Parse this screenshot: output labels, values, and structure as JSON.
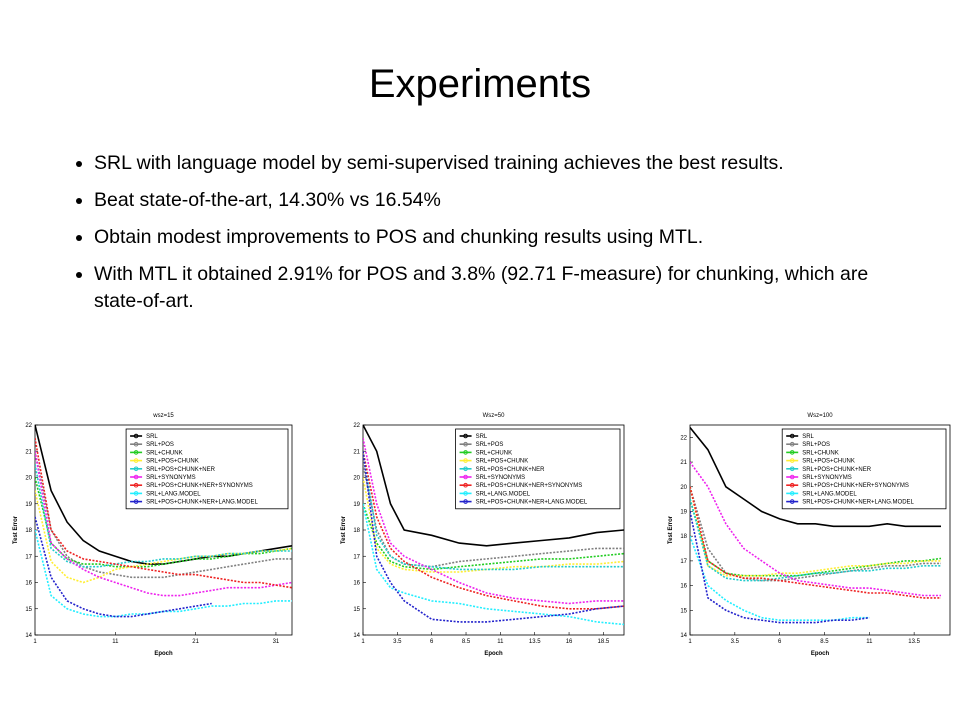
{
  "title": "Experiments",
  "bullets": [
    "SRL with language model by semi-supervised training achieves the best results.",
    "Beat state-of-the-art, 14.30% vs 16.54%",
    "Obtain modest improvements to POS and chunking results using MTL.",
    "With MTL it obtained 2.91% for POS and 3.8% (92.71 F-measure) for chunking, which are state-of-art."
  ],
  "chart_data": [
    {
      "type": "line",
      "title": "wsz=15",
      "xlabel": "Epoch",
      "ylabel": "Test Error",
      "legend": "upper right",
      "grid": false,
      "x": [
        1,
        3,
        5,
        7,
        9,
        11,
        13,
        15,
        17,
        19,
        21,
        23,
        25,
        27,
        29,
        31,
        33
      ],
      "xlim": [
        1,
        33
      ],
      "xticks": [
        1,
        11,
        21,
        31
      ],
      "ylim": [
        14,
        22
      ],
      "yticks": [
        14,
        15,
        16,
        17,
        18,
        19,
        20,
        21,
        22
      ],
      "series": [
        {
          "name": "SRL",
          "color": "#000000",
          "values": [
            22,
            19.5,
            18.3,
            17.6,
            17.2,
            17,
            16.8,
            16.7,
            16.7,
            16.8,
            16.9,
            17,
            17,
            17.1,
            17.2,
            17.3,
            17.4
          ]
        },
        {
          "name": "SRL+POS",
          "color": "#808080",
          "values": [
            21,
            18,
            17,
            16.6,
            16.4,
            16.3,
            16.2,
            16.2,
            16.2,
            16.3,
            16.4,
            16.5,
            16.6,
            16.7,
            16.8,
            16.9,
            16.9
          ]
        },
        {
          "name": "SRL+CHUNK",
          "color": "#22cc22",
          "values": [
            20,
            17.5,
            16.9,
            16.7,
            16.7,
            16.6,
            16.6,
            16.6,
            16.7,
            16.8,
            16.9,
            16.9,
            17,
            17.1,
            17.1,
            17.2,
            17.3
          ]
        },
        {
          "name": "SRL+POS+CHUNK",
          "color": "#ffee33",
          "values": [
            19.5,
            16.8,
            16.2,
            16,
            16.2,
            16.5,
            16.6,
            16.7,
            16.8,
            16.9,
            17,
            17,
            17.1,
            17.1,
            17.2,
            17.2,
            17.3
          ]
        },
        {
          "name": "SRL+POS+CHUNK+NER",
          "color": "#22cccc",
          "values": [
            20.5,
            17.3,
            16.8,
            16.6,
            16.6,
            16.7,
            16.8,
            16.8,
            16.9,
            16.9,
            17,
            17,
            17.1,
            17.1,
            17.2,
            17.2,
            17.2
          ]
        },
        {
          "name": "SRL+SYNONYMS",
          "color": "#ee22ee",
          "values": [
            21,
            17.5,
            16.9,
            16.5,
            16.2,
            16,
            15.8,
            15.6,
            15.5,
            15.5,
            15.6,
            15.7,
            15.8,
            15.8,
            15.8,
            15.9,
            16
          ]
        },
        {
          "name": "SRL+POS+CHUNK+NER+SYNONYMS",
          "color": "#ee2222",
          "values": [
            21.5,
            18,
            17.2,
            16.9,
            16.8,
            16.7,
            16.6,
            16.5,
            16.4,
            16.3,
            16.3,
            16.2,
            16.1,
            16,
            16,
            15.9,
            15.8
          ]
        },
        {
          "name": "SRL+LANG.MODEL",
          "color": "#22eeff",
          "values": [
            18,
            15.5,
            15,
            14.8,
            14.7,
            14.7,
            14.8,
            14.8,
            14.9,
            14.9,
            15,
            15.1,
            15.1,
            15.2,
            15.2,
            15.3,
            15.3
          ]
        },
        {
          "name": "SRL+POS+CHUNK+NER+LANG.MODEL",
          "color": "#2222cc",
          "values": [
            18.5,
            16.2,
            15.3,
            15,
            14.8,
            14.7,
            14.7,
            14.8,
            14.9,
            15,
            15.1,
            15.2,
            null,
            null,
            null,
            null,
            null
          ]
        }
      ]
    },
    {
      "type": "line",
      "title": "Wsz=50",
      "xlabel": "Epoch",
      "ylabel": "Test Error",
      "legend": "upper right",
      "grid": false,
      "x": [
        1,
        2,
        3,
        4,
        6,
        8,
        10,
        12,
        14,
        16,
        18,
        20
      ],
      "xlim": [
        1,
        20
      ],
      "xticks": [
        1,
        3.5,
        6,
        8.5,
        11,
        13.5,
        16,
        18.5
      ],
      "ylim": [
        14,
        22
      ],
      "yticks": [
        14,
        15,
        16,
        17,
        18,
        19,
        20,
        21,
        22
      ],
      "series": [
        {
          "name": "SRL",
          "color": "#000000",
          "values": [
            22,
            21,
            19,
            18,
            17.8,
            17.5,
            17.4,
            17.5,
            17.6,
            17.7,
            17.9,
            18
          ]
        },
        {
          "name": "SRL+POS",
          "color": "#808080",
          "values": [
            20.5,
            18,
            17,
            16.7,
            16.6,
            16.8,
            16.9,
            17,
            17.1,
            17.2,
            17.3,
            17.3
          ]
        },
        {
          "name": "SRL+CHUNK",
          "color": "#22cc22",
          "values": [
            19,
            17.5,
            16.8,
            16.6,
            16.5,
            16.6,
            16.7,
            16.8,
            16.9,
            16.9,
            17,
            17.1
          ]
        },
        {
          "name": "SRL+POS+CHUNK",
          "color": "#ffee33",
          "values": [
            20,
            17.3,
            16.7,
            16.5,
            16.4,
            16.4,
            16.5,
            16.6,
            16.6,
            16.7,
            16.7,
            16.8
          ]
        },
        {
          "name": "SRL+POS+CHUNK+NER",
          "color": "#22cccc",
          "values": [
            21,
            17.8,
            17,
            16.7,
            16.6,
            16.5,
            16.5,
            16.5,
            16.6,
            16.6,
            16.6,
            16.6
          ]
        },
        {
          "name": "SRL+SYNONYMS",
          "color": "#ee22ee",
          "values": [
            21.5,
            19,
            17.5,
            17,
            16.5,
            16,
            15.6,
            15.4,
            15.3,
            15.2,
            15.3,
            15.3
          ]
        },
        {
          "name": "SRL+POS+CHUNK+NER+SYNONYMS",
          "color": "#ee2222",
          "values": [
            21,
            18.5,
            17.3,
            16.8,
            16.2,
            15.8,
            15.5,
            15.3,
            15.1,
            15,
            15,
            15.1
          ]
        },
        {
          "name": "SRL+LANG.MODEL",
          "color": "#22eeff",
          "values": [
            19,
            16.5,
            15.8,
            15.6,
            15.3,
            15.2,
            15,
            14.9,
            14.8,
            14.7,
            14.5,
            14.4
          ]
        },
        {
          "name": "SRL+POS+CHUNK+NER+LANG.MODEL",
          "color": "#2222cc",
          "values": [
            21,
            17,
            16,
            15.3,
            14.6,
            14.5,
            14.5,
            14.6,
            14.7,
            14.8,
            15,
            15.1
          ]
        }
      ]
    },
    {
      "type": "line",
      "title": "Wsz=100",
      "xlabel": "Epoch",
      "ylabel": "Test Error",
      "legend": "upper right",
      "grid": false,
      "x": [
        1,
        2,
        3,
        4,
        5,
        6,
        7,
        8,
        9,
        10,
        11,
        12,
        13,
        14,
        15
      ],
      "xlim": [
        1,
        15.5
      ],
      "xticks": [
        1,
        3.5,
        6,
        8.5,
        11,
        13.5
      ],
      "ylim": [
        14,
        22.5
      ],
      "yticks": [
        14,
        15,
        16,
        17,
        18,
        19,
        20,
        21,
        22
      ],
      "series": [
        {
          "name": "SRL",
          "color": "#000000",
          "values": [
            22.4,
            21.5,
            20,
            19.5,
            19,
            18.7,
            18.5,
            18.5,
            18.4,
            18.4,
            18.4,
            18.5,
            18.4,
            18.4,
            18.4
          ]
        },
        {
          "name": "SRL+POS",
          "color": "#808080",
          "values": [
            20,
            17.5,
            16.5,
            16.3,
            16.2,
            16.2,
            16.3,
            16.4,
            16.5,
            16.6,
            16.7,
            16.8,
            16.8,
            16.9,
            16.9
          ]
        },
        {
          "name": "SRL+CHUNK",
          "color": "#22cc22",
          "values": [
            19.5,
            17,
            16.5,
            16.4,
            16.4,
            16.4,
            16.4,
            16.5,
            16.6,
            16.7,
            16.8,
            16.9,
            17,
            17,
            17.1
          ]
        },
        {
          "name": "SRL+POS+CHUNK",
          "color": "#ffee33",
          "values": [
            20,
            16.8,
            16.4,
            16.4,
            16.4,
            16.5,
            16.5,
            16.6,
            16.7,
            16.8,
            16.8,
            16.9,
            16.9,
            17,
            17
          ]
        },
        {
          "name": "SRL+POS+CHUNK+NER",
          "color": "#22cccc",
          "values": [
            19.5,
            16.8,
            16.3,
            16.2,
            16.2,
            16.3,
            16.4,
            16.5,
            16.5,
            16.6,
            16.6,
            16.7,
            16.7,
            16.8,
            16.8
          ]
        },
        {
          "name": "SRL+SYNONYMS",
          "color": "#ee22ee",
          "values": [
            21,
            20,
            18.5,
            17.5,
            17,
            16.5,
            16.2,
            16.1,
            16,
            15.9,
            15.9,
            15.8,
            15.7,
            15.6,
            15.6
          ]
        },
        {
          "name": "SRL+POS+CHUNK+NER+SYNONYMS",
          "color": "#ee2222",
          "values": [
            20,
            17,
            16.5,
            16.3,
            16.3,
            16.2,
            16.1,
            16,
            15.9,
            15.8,
            15.7,
            15.7,
            15.6,
            15.5,
            15.5
          ]
        },
        {
          "name": "SRL+LANG.MODEL",
          "color": "#22eeff",
          "values": [
            18,
            16,
            15.4,
            15,
            14.7,
            14.6,
            14.6,
            14.6,
            14.6,
            14.7,
            14.7,
            null,
            null,
            null,
            null
          ]
        },
        {
          "name": "SRL+POS+CHUNK+NER+LANG.MODEL",
          "color": "#2222cc",
          "values": [
            19,
            15.5,
            15,
            14.7,
            14.6,
            14.5,
            14.5,
            14.5,
            14.6,
            14.6,
            14.7,
            null,
            null,
            null,
            null
          ]
        }
      ]
    }
  ]
}
